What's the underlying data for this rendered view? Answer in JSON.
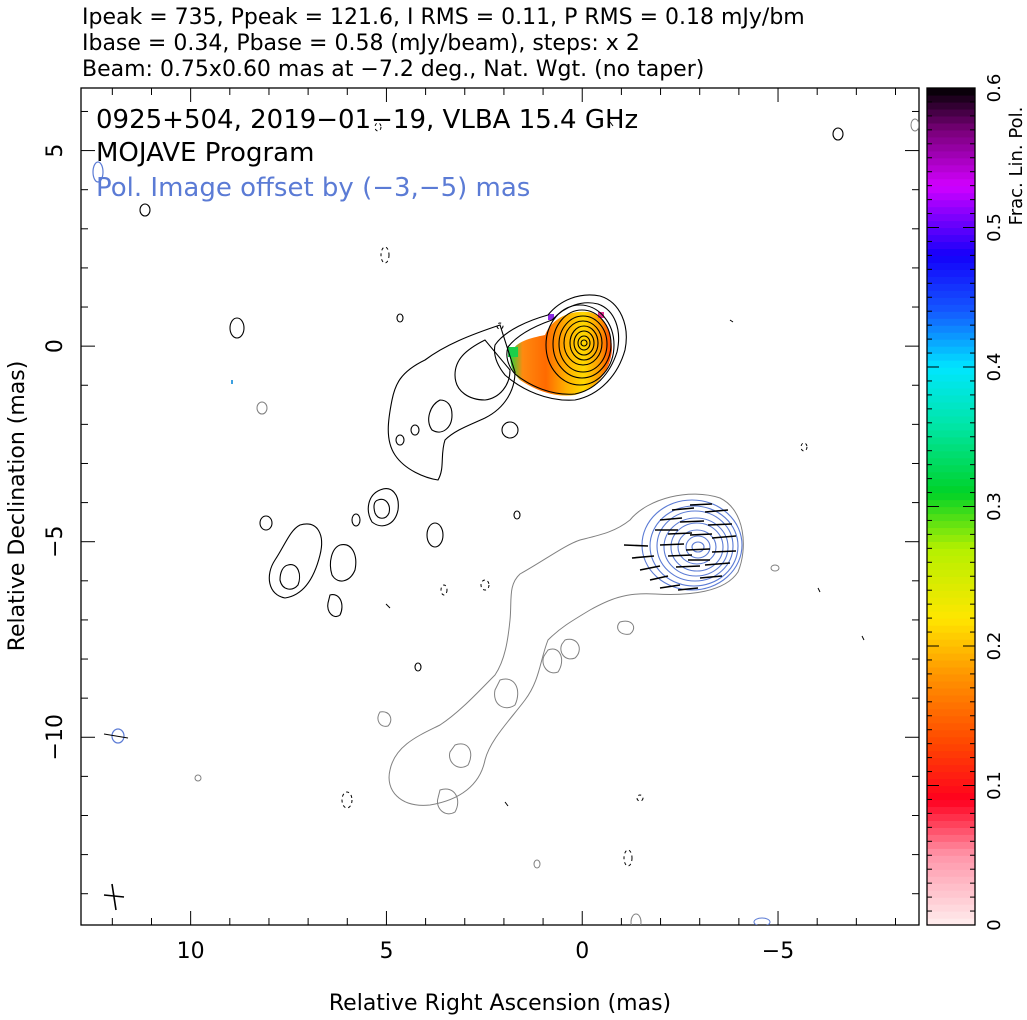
{
  "header": {
    "line1": "Ipeak = 735, Ppeak = 121.6, I RMS = 0.11, P RMS = 0.18 mJy/bm",
    "line2": "Ibase = 0.34, Pbase = 0.58 (mJy/beam), steps: x 2",
    "line3": "Beam: 0.75x0.60 mas at −7.2 deg., Nat. Wgt. (no taper)"
  },
  "annotations": {
    "source": "0925+504, 2019−01−19, VLBA 15.4 GHz",
    "program": "MOJAVE Program",
    "pol_offset": "Pol. Image offset by (−3,−5) mas"
  },
  "colors": {
    "stokes_i_contour": "#000000",
    "pol_contour": "#5b7bd5",
    "lowlevel_contour": "#808080",
    "annotation_blue": "#5b7bd5"
  },
  "chart_data": {
    "type": "contour-image",
    "xlabel": "Relative Right Ascension (mas)",
    "ylabel": "Relative Declination (mas)",
    "xlim": [
      12.8,
      -8.6
    ],
    "ylim": [
      -14.8,
      6.6
    ],
    "x_ticks": [
      {
        "value": 10,
        "label": "10"
      },
      {
        "value": 5,
        "label": "5"
      },
      {
        "value": 0,
        "label": "0"
      },
      {
        "value": -5,
        "label": "−5"
      }
    ],
    "y_ticks": [
      {
        "value": 5,
        "label": "5"
      },
      {
        "value": 0,
        "label": "0"
      },
      {
        "value": -5,
        "label": "−5"
      },
      {
        "value": -10,
        "label": "−10"
      }
    ],
    "colorbar": {
      "title": "Frac. Lin. Pol.",
      "range": [
        0,
        0.6
      ],
      "ticks": [
        {
          "value": 0,
          "label": "0"
        },
        {
          "value": 0.1,
          "label": "0.1"
        },
        {
          "value": 0.2,
          "label": "0.2"
        },
        {
          "value": 0.3,
          "label": "0.3"
        },
        {
          "value": 0.4,
          "label": "0.4"
        },
        {
          "value": 0.5,
          "label": "0.5"
        },
        {
          "value": 0.6,
          "label": "0.6"
        }
      ]
    },
    "core": {
      "ra": 0,
      "dec": 0
    },
    "pol_image_offset": {
      "ra": -3,
      "dec": -5
    },
    "beam": {
      "major_mas": 0.75,
      "minor_mas": 0.6,
      "pa_deg": -7.2
    }
  }
}
